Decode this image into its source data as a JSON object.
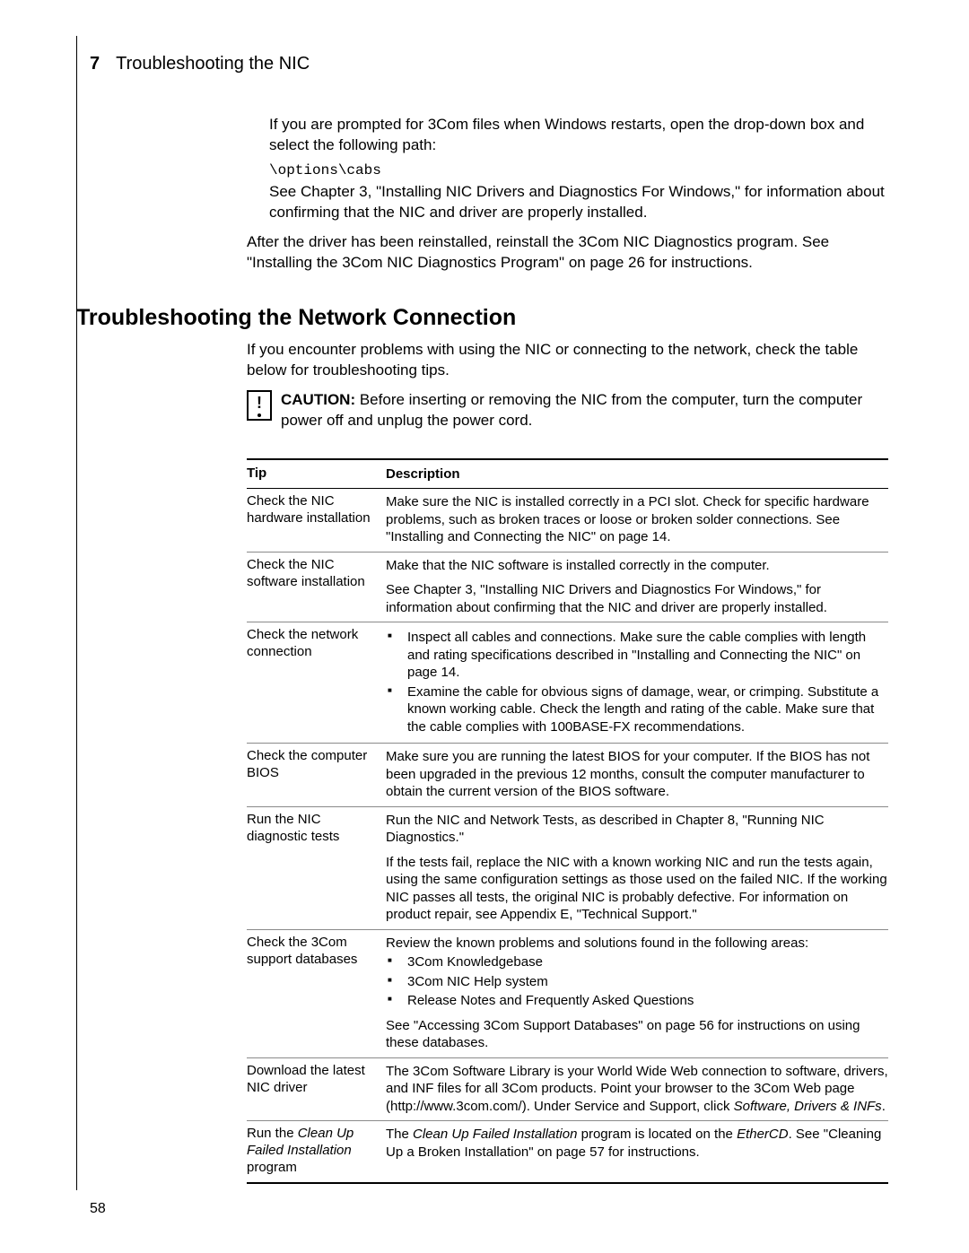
{
  "header": {
    "chapter_num": "7",
    "chapter_title": "Troubleshooting the NIC"
  },
  "intro": {
    "p1": "If you are prompted for 3Com files when Windows restarts, open the drop-down box and select the following path:",
    "path": "\\options\\cabs",
    "p2": "See Chapter 3, \"Installing NIC Drivers and Diagnostics For Windows,\" for information about confirming that the NIC and driver are properly installed.",
    "p3": "After the driver has been reinstalled, reinstall the 3Com NIC Diagnostics program. See \"Installing the 3Com NIC Diagnostics Program\" on page 26 for instructions."
  },
  "section_heading": "Troubleshooting the Network Connection",
  "section_intro": "If you encounter problems with using the NIC or connecting to the network, check the table below for troubleshooting tips.",
  "caution_label": "CAUTION:",
  "caution_text": "Before inserting or removing the NIC from the computer, turn the computer power off and unplug the power cord.",
  "table": {
    "head_tip": "Tip",
    "head_desc": "Description",
    "rows": [
      {
        "tip": "Check the NIC hardware installation",
        "desc": "Make sure the NIC is installed correctly in a PCI slot. Check for specific hardware problems, such as broken traces or loose or broken solder connections. See \"Installing and Connecting the NIC\" on page 14."
      },
      {
        "tip": "Check the NIC software installation",
        "desc": "Make that the NIC software is installed correctly in the computer.",
        "desc2": "See Chapter 3, \"Installing NIC Drivers and Diagnostics For Windows,\" for information about confirming that the NIC and driver are properly installed."
      },
      {
        "tip": "Check the network connection",
        "bullets": [
          "Inspect all cables and connections. Make sure the cable complies with length and rating specifications described in \"Installing and Connecting the NIC\" on page 14.",
          "Examine the cable for obvious signs of damage, wear, or crimping. Substitute a known working cable. Check the length and rating of the cable. Make sure that the cable complies with 100BASE-FX recommendations."
        ]
      },
      {
        "tip": "Check the computer BIOS",
        "desc": "Make sure you are running the latest BIOS for your computer. If the BIOS has not been upgraded in the previous 12 months, consult the computer manufacturer to obtain the current version of the BIOS software."
      },
      {
        "tip": "Run the NIC diagnostic tests",
        "desc": "Run the NIC and Network Tests, as described in Chapter 8, \"Running NIC Diagnostics.\"",
        "desc2": "If the tests fail, replace the NIC with a known working NIC and run the tests again, using the same configuration settings as those used on the failed NIC. If the working NIC passes all tests, the original NIC is probably defective. For information on product repair, see Appendix E, \"Technical Support.\""
      },
      {
        "tip": "Check the 3Com support databases",
        "desc": "Review the known problems and solutions found in the following areas:",
        "bullets": [
          "3Com Knowledgebase",
          "3Com NIC Help system",
          "Release Notes and Frequently Asked Questions"
        ],
        "desc2": "See \"Accessing 3Com Support Databases\" on page 56 for instructions on using these databases."
      },
      {
        "tip": "Download the latest NIC driver",
        "desc_html": "The 3Com Software Library is your World Wide Web connection to software, drivers, and INF files for all 3Com products. Point your browser to the 3Com Web page (http://www.3com.com/). Under Service and Support, click <em>Software, Drivers & INFs</em>."
      },
      {
        "tip_html": "Run the <em>Clean Up Failed Installation</em> program",
        "desc_html": "The <em>Clean Up Failed Installation</em> program is located on the <em>EtherCD</em>. See \"Cleaning Up a Broken Installation\" on page 57 for instructions."
      }
    ]
  },
  "page_number": "58"
}
